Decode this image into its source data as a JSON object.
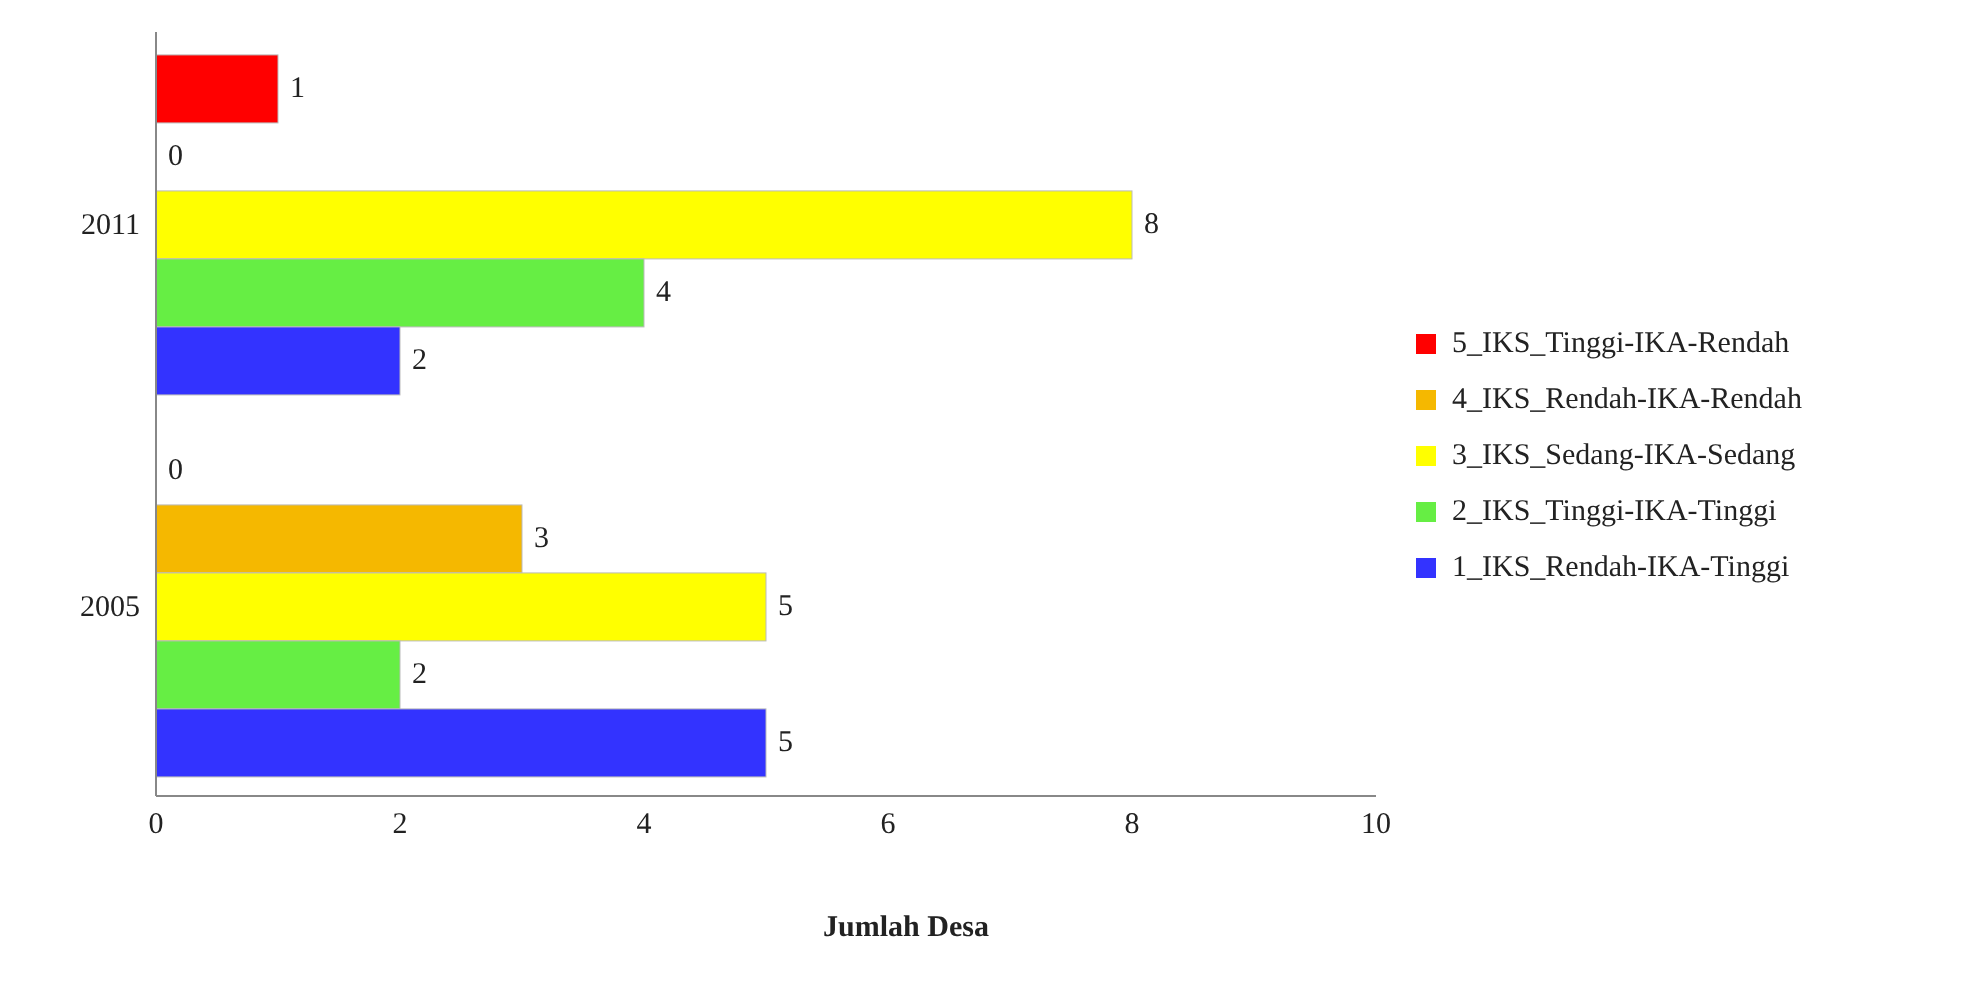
{
  "chart_data": {
    "type": "bar",
    "orientation": "horizontal",
    "categories": [
      "2011",
      "2005"
    ],
    "series": [
      {
        "name": "5_IKS_Tinggi-IKA-Rendah",
        "color": "#ff0000",
        "values": [
          1,
          0
        ]
      },
      {
        "name": "4_IKS_Rendah-IKA-Rendah",
        "color": "#f5b800",
        "values": [
          0,
          3
        ]
      },
      {
        "name": "3_IKS_Sedang-IKA-Sedang",
        "color": "#ffff00",
        "values": [
          8,
          5
        ]
      },
      {
        "name": "2_IKS_Tinggi-IKA-Tinggi",
        "color": "#66ee44",
        "values": [
          4,
          2
        ]
      },
      {
        "name": "1_IKS_Rendah-IKA-Tinggi",
        "color": "#3333ff",
        "values": [
          2,
          5
        ]
      }
    ],
    "xlabel": "Jumlah Desa",
    "xlim": [
      0,
      10
    ],
    "xticks": [
      0,
      2,
      4,
      6,
      8,
      10
    ],
    "data_labels": true,
    "legend": "right",
    "grid": false
  }
}
